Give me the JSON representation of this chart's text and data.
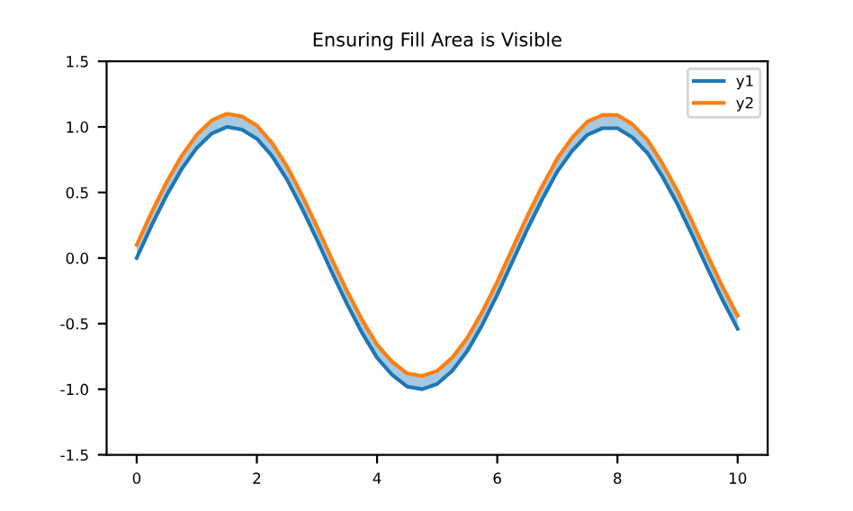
{
  "chart_data": {
    "type": "line",
    "title": "Ensuring Fill Area is Visible",
    "x": [
      0,
      0.25,
      0.5,
      0.75,
      1,
      1.25,
      1.5,
      1.75,
      2,
      2.25,
      2.5,
      2.75,
      3,
      3.25,
      3.5,
      3.75,
      4,
      4.25,
      4.5,
      4.75,
      5,
      5.25,
      5.5,
      5.75,
      6,
      6.25,
      6.5,
      6.75,
      7,
      7.25,
      7.5,
      7.75,
      8,
      8.25,
      8.5,
      8.75,
      9,
      9.25,
      9.5,
      9.75,
      10
    ],
    "series": [
      {
        "name": "y1",
        "color": "#1f77b4",
        "values": [
          0.0,
          0.25,
          0.48,
          0.68,
          0.84,
          0.95,
          1.0,
          0.98,
          0.91,
          0.78,
          0.6,
          0.38,
          0.14,
          -0.11,
          -0.35,
          -0.57,
          -0.76,
          -0.89,
          -0.98,
          -1.0,
          -0.96,
          -0.86,
          -0.71,
          -0.51,
          -0.28,
          -0.03,
          0.22,
          0.45,
          0.66,
          0.82,
          0.94,
          0.99,
          0.99,
          0.92,
          0.8,
          0.62,
          0.41,
          0.17,
          -0.08,
          -0.32,
          -0.54
        ],
        "lower": [
          0.0,
          0.25,
          0.48,
          0.68,
          0.84,
          0.95,
          1.0,
          0.98,
          0.91,
          0.78,
          0.6,
          0.38,
          0.14,
          -0.11,
          -0.35,
          -0.57,
          -0.76,
          -0.89,
          -0.98,
          -1.0,
          -0.96,
          -0.86,
          -0.71,
          -0.51,
          -0.28,
          -0.03,
          0.22,
          0.45,
          0.66,
          0.82,
          0.94,
          0.99,
          0.99,
          0.92,
          0.8,
          0.62,
          0.41,
          0.17,
          -0.08,
          -0.32,
          -0.54
        ],
        "upper": [
          0.1,
          0.35,
          0.58,
          0.78,
          0.94,
          1.05,
          1.1,
          1.08,
          1.01,
          0.88,
          0.7,
          0.48,
          0.24,
          -0.01,
          -0.25,
          -0.47,
          -0.66,
          -0.79,
          -0.88,
          -0.9,
          -0.86,
          -0.76,
          -0.61,
          -0.41,
          -0.18,
          0.07,
          0.32,
          0.55,
          0.76,
          0.92,
          1.04,
          1.09,
          1.09,
          1.02,
          0.9,
          0.72,
          0.51,
          0.27,
          0.02,
          -0.22,
          -0.44
        ]
      },
      {
        "name": "y2",
        "color": "#ff7f0e",
        "values": [
          0.1,
          0.35,
          0.58,
          0.78,
          0.94,
          1.05,
          1.1,
          1.08,
          1.01,
          0.88,
          0.7,
          0.48,
          0.24,
          -0.01,
          -0.25,
          -0.47,
          -0.66,
          -0.79,
          -0.88,
          -0.9,
          -0.86,
          -0.76,
          -0.61,
          -0.41,
          -0.18,
          0.07,
          0.32,
          0.55,
          0.76,
          0.92,
          1.04,
          1.09,
          1.09,
          1.02,
          0.9,
          0.72,
          0.51,
          0.27,
          0.02,
          -0.22,
          -0.44
        ]
      }
    ],
    "xlim": [
      -0.5,
      10.5
    ],
    "xticks": [
      0,
      2,
      4,
      6,
      8,
      10
    ],
    "ylim": [
      -1.5,
      1.5
    ],
    "yticks": [
      -1.5,
      {
        "value": -1.0,
        "label": "-1.0"
      },
      -0.5,
      {
        "value": 0.0,
        "label": "0.0"
      },
      0.5,
      {
        "value": 1.0,
        "label": "1.0"
      },
      1.5
    ],
    "grid": false,
    "legend": "top right"
  }
}
